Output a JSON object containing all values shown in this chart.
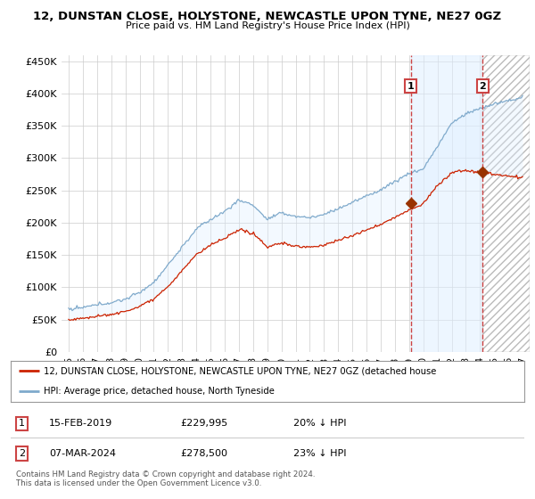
{
  "title": "12, DUNSTAN CLOSE, HOLYSTONE, NEWCASTLE UPON TYNE, NE27 0GZ",
  "subtitle": "Price paid vs. HM Land Registry's House Price Index (HPI)",
  "hpi_label": "HPI: Average price, detached house, North Tyneside",
  "price_label": "12, DUNSTAN CLOSE, HOLYSTONE, NEWCASTLE UPON TYNE, NE27 0GZ (detached house",
  "annotation1": {
    "label": "1",
    "date": "15-FEB-2019",
    "price": 229995,
    "pct": "20% ↓ HPI",
    "x": 2019.12
  },
  "annotation2": {
    "label": "2",
    "date": "07-MAR-2024",
    "price": 278500,
    "pct": "23% ↓ HPI",
    "x": 2024.19
  },
  "footnote1": "Contains HM Land Registry data © Crown copyright and database right 2024.",
  "footnote2": "This data is licensed under the Open Government Licence v3.0.",
  "ylim": [
    0,
    460000
  ],
  "yticks": [
    0,
    50000,
    100000,
    150000,
    200000,
    250000,
    300000,
    350000,
    400000,
    450000
  ],
  "ytick_labels": [
    "£0",
    "£50K",
    "£100K",
    "£150K",
    "£200K",
    "£250K",
    "£300K",
    "£350K",
    "£400K",
    "£450K"
  ],
  "xtick_years": [
    1995,
    1996,
    1997,
    1998,
    1999,
    2000,
    2001,
    2002,
    2003,
    2004,
    2005,
    2006,
    2007,
    2008,
    2009,
    2010,
    2011,
    2012,
    2013,
    2014,
    2015,
    2016,
    2017,
    2018,
    2019,
    2020,
    2021,
    2022,
    2023,
    2024,
    2025,
    2026,
    2027
  ],
  "xtick_labels": [
    "95",
    "96",
    "97",
    "98",
    "99",
    "00",
    "01",
    "02",
    "03",
    "04",
    "05",
    "06",
    "07",
    "08",
    "09",
    "10",
    "11",
    "12",
    "13",
    "14",
    "15",
    "16",
    "17",
    "18",
    "19",
    "20",
    "21",
    "22",
    "23",
    "24",
    "25",
    "26",
    "27"
  ],
  "hpi_color": "#7faacc",
  "price_color": "#cc2200",
  "marker_color": "#993300",
  "shade_color": "#ddeeff",
  "dashed_color": "#cc4444",
  "bg_color": "#ffffff",
  "grid_color": "#cccccc",
  "xlim_left": 1994.5,
  "xlim_right": 2027.5
}
